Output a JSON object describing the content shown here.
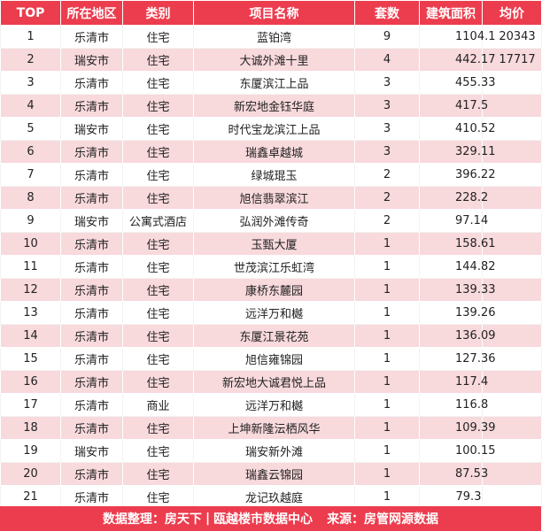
{
  "table": {
    "headers": {
      "rank": "TOP",
      "region": "所在地区",
      "category": "类别",
      "project": "项目名称",
      "units": "套数",
      "area": "建筑面积",
      "price": "均价"
    },
    "rows": [
      {
        "rank": "1",
        "region": "乐清市",
        "category": "住宅",
        "project": "蓝铂湾",
        "units": "9",
        "area": "1104.1",
        "price": "20343"
      },
      {
        "rank": "2",
        "region": "瑞安市",
        "category": "住宅",
        "project": "大诚外滩十里",
        "units": "4",
        "area": "442.17",
        "price": "17717"
      },
      {
        "rank": "3",
        "region": "乐清市",
        "category": "住宅",
        "project": "东厦滨江上品",
        "units": "3",
        "area": "455.33",
        "price": ""
      },
      {
        "rank": "4",
        "region": "乐清市",
        "category": "住宅",
        "project": "新宏地金钰华庭",
        "units": "3",
        "area": "417.5",
        "price": ""
      },
      {
        "rank": "5",
        "region": "瑞安市",
        "category": "住宅",
        "project": "时代宝龙滨江上品",
        "units": "3",
        "area": "410.52",
        "price": ""
      },
      {
        "rank": "6",
        "region": "乐清市",
        "category": "住宅",
        "project": "瑞鑫卓越城",
        "units": "3",
        "area": "329.11",
        "price": ""
      },
      {
        "rank": "7",
        "region": "乐清市",
        "category": "住宅",
        "project": "绿城琨玉",
        "units": "2",
        "area": "396.22",
        "price": ""
      },
      {
        "rank": "8",
        "region": "乐清市",
        "category": "住宅",
        "project": "旭信翡翠滨江",
        "units": "2",
        "area": "228.2",
        "price": ""
      },
      {
        "rank": "9",
        "region": "瑞安市",
        "category": "公寓式酒店",
        "project": "弘润外滩传奇",
        "units": "2",
        "area": "97.14",
        "price": ""
      },
      {
        "rank": "10",
        "region": "乐清市",
        "category": "住宅",
        "project": "玉甄大厦",
        "units": "1",
        "area": "158.61",
        "price": ""
      },
      {
        "rank": "11",
        "region": "乐清市",
        "category": "住宅",
        "project": "世茂滨江乐虹湾",
        "units": "1",
        "area": "144.82",
        "price": ""
      },
      {
        "rank": "12",
        "region": "乐清市",
        "category": "住宅",
        "project": "康桥东麓园",
        "units": "1",
        "area": "139.33",
        "price": ""
      },
      {
        "rank": "13",
        "region": "乐清市",
        "category": "住宅",
        "project": "远洋万和樾",
        "units": "1",
        "area": "139.26",
        "price": ""
      },
      {
        "rank": "14",
        "region": "乐清市",
        "category": "住宅",
        "project": "东厦江景花苑",
        "units": "1",
        "area": "136.09",
        "price": ""
      },
      {
        "rank": "15",
        "region": "乐清市",
        "category": "住宅",
        "project": "旭信雍锦园",
        "units": "1",
        "area": "127.36",
        "price": ""
      },
      {
        "rank": "16",
        "region": "乐清市",
        "category": "住宅",
        "project": "新宏地大诚君悦上品",
        "units": "1",
        "area": "117.4",
        "price": ""
      },
      {
        "rank": "17",
        "region": "乐清市",
        "category": "商业",
        "project": "远洋万和樾",
        "units": "1",
        "area": "116.8",
        "price": ""
      },
      {
        "rank": "18",
        "region": "乐清市",
        "category": "住宅",
        "project": "上坤新隆沄栖风华",
        "units": "1",
        "area": "109.39",
        "price": ""
      },
      {
        "rank": "19",
        "region": "瑞安市",
        "category": "住宅",
        "project": "瑞安新外滩",
        "units": "1",
        "area": "100.15",
        "price": ""
      },
      {
        "rank": "20",
        "region": "乐清市",
        "category": "住宅",
        "project": "瑞鑫云锦园",
        "units": "1",
        "area": "87.53",
        "price": ""
      },
      {
        "rank": "21",
        "region": "乐清市",
        "category": "住宅",
        "project": "龙记玖越庭",
        "units": "1",
        "area": "79.3",
        "price": ""
      }
    ]
  },
  "footer": {
    "compiled_by": "数据整理：房天下",
    "separator": "|",
    "center": "瓯越楼市数据中心",
    "source": "来源：房管网源数据"
  },
  "colors": {
    "accent": "#ec3d4e",
    "stripe": "#f8d9dc"
  }
}
